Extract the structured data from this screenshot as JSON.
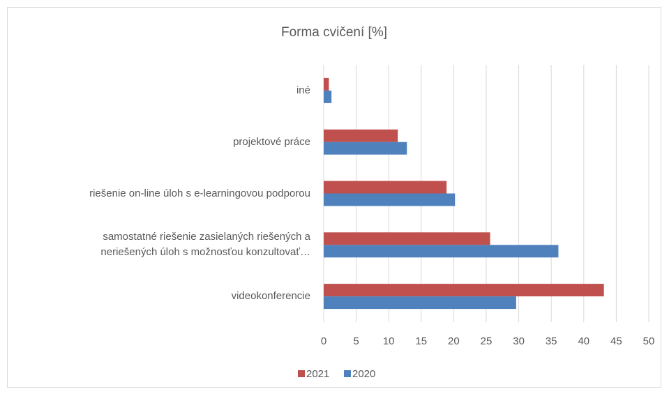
{
  "chart_data": {
    "type": "bar",
    "orientation": "horizontal",
    "title": "Forma cvičení [%]",
    "categories": [
      "iné",
      "projektové práce",
      "riešenie on-line úloh s e-learningovou podporou",
      "samostatné riešenie zasielaných riešených a\nneriešených úloh s možnosťou konzultovať…",
      "videokonferencie"
    ],
    "series": [
      {
        "name": "2021",
        "color": "#c0504d",
        "values": [
          0.8,
          11.4,
          18.9,
          25.6,
          43.1
        ]
      },
      {
        "name": "2020",
        "color": "#4f81bd",
        "values": [
          1.2,
          12.8,
          20.2,
          36.1,
          29.6
        ]
      }
    ],
    "xlim": [
      0,
      50
    ],
    "xticks": [
      0,
      5,
      10,
      15,
      20,
      25,
      30,
      35,
      40,
      45,
      50
    ],
    "grid": true,
    "legend": "bottom"
  }
}
